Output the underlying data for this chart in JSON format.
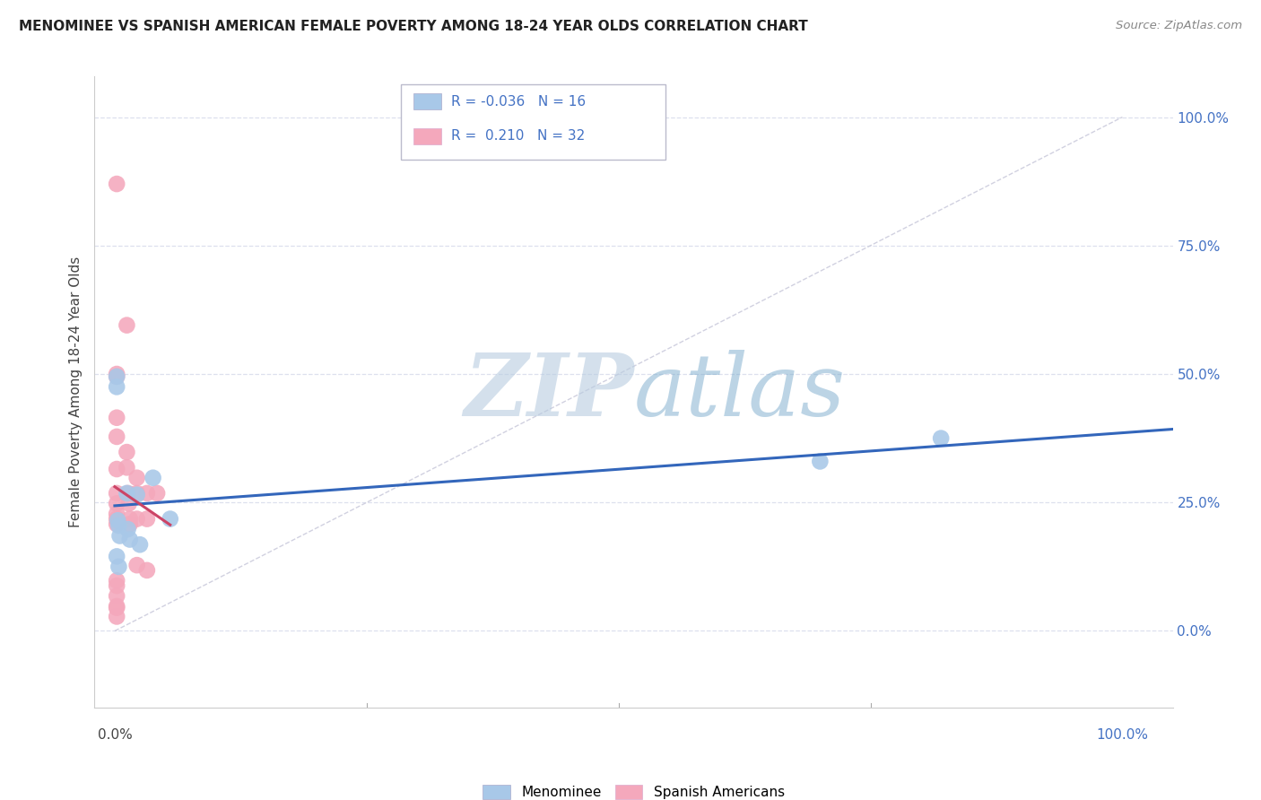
{
  "title": "MENOMINEE VS SPANISH AMERICAN FEMALE POVERTY AMONG 18-24 YEAR OLDS CORRELATION CHART",
  "source": "Source: ZipAtlas.com",
  "ylabel": "Female Poverty Among 18-24 Year Olds",
  "yticks_labels": [
    "0.0%",
    "25.0%",
    "50.0%",
    "75.0%",
    "100.0%"
  ],
  "ytick_vals": [
    0.0,
    0.25,
    0.5,
    0.75,
    1.0
  ],
  "xlim": [
    -0.02,
    1.05
  ],
  "ylim": [
    -0.15,
    1.08
  ],
  "menominee_R": "-0.036",
  "menominee_N": "16",
  "spanish_R": "0.210",
  "spanish_N": "32",
  "menominee_color": "#a8c8e8",
  "spanish_color": "#f4a8bc",
  "trend_menominee_color": "#3366bb",
  "trend_spanish_color": "#cc4466",
  "diagonal_color": "#ccccdd",
  "menominee_x": [
    0.002,
    0.002,
    0.003,
    0.004,
    0.005,
    0.012,
    0.013,
    0.015,
    0.022,
    0.025,
    0.038,
    0.055,
    0.7,
    0.82,
    0.002,
    0.004
  ],
  "menominee_y": [
    0.495,
    0.475,
    0.215,
    0.205,
    0.185,
    0.268,
    0.198,
    0.178,
    0.265,
    0.168,
    0.298,
    0.218,
    0.33,
    0.375,
    0.145,
    0.125
  ],
  "spanish_x": [
    0.002,
    0.002,
    0.002,
    0.002,
    0.002,
    0.002,
    0.002,
    0.002,
    0.002,
    0.002,
    0.002,
    0.002,
    0.012,
    0.012,
    0.012,
    0.013,
    0.014,
    0.015,
    0.015,
    0.022,
    0.022,
    0.022,
    0.022,
    0.032,
    0.032,
    0.032,
    0.042,
    0.002,
    0.002,
    0.002,
    0.002,
    0.002
  ],
  "spanish_y": [
    0.87,
    0.5,
    0.495,
    0.415,
    0.378,
    0.315,
    0.268,
    0.248,
    0.228,
    0.218,
    0.208,
    0.045,
    0.595,
    0.348,
    0.318,
    0.268,
    0.248,
    0.218,
    0.208,
    0.298,
    0.268,
    0.218,
    0.128,
    0.268,
    0.218,
    0.118,
    0.268,
    0.098,
    0.088,
    0.068,
    0.048,
    0.028
  ],
  "watermark_zip": "ZIP",
  "watermark_atlas": "atlas",
  "background_color": "#ffffff",
  "grid_color": "#dde0ee",
  "legend_box_color": "#eeeeee"
}
